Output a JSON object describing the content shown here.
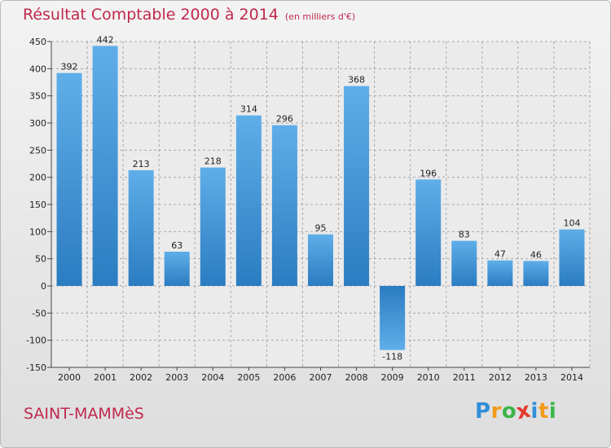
{
  "title": "Résultat Comptable 2000 à 2014",
  "subtitle": "(en milliers d'€)",
  "town": "SAINT-MAMMèS",
  "logo": {
    "letters": [
      "P",
      "r",
      "o",
      "x",
      "i",
      "t",
      "i"
    ],
    "colors": [
      "#2f8fd8",
      "#f29a1b",
      "#3bb54a",
      "#e23a2e",
      "#2f8fd8",
      "#f29a1b",
      "#3bb54a"
    ]
  },
  "colors": {
    "bar_light": "#5faee9",
    "bar_dark": "#2b7cc1",
    "title": "#c0294d",
    "grid": "#a8a8a8"
  },
  "chart_data": {
    "type": "bar",
    "categories": [
      "2000",
      "2001",
      "2002",
      "2003",
      "2004",
      "2005",
      "2006",
      "2007",
      "2008",
      "2009",
      "2010",
      "2011",
      "2012",
      "2013",
      "2014"
    ],
    "values": [
      392,
      442,
      213,
      63,
      218,
      314,
      296,
      95,
      368,
      -118,
      196,
      83,
      47,
      46,
      104
    ],
    "value_labels": [
      "392",
      "442",
      "213",
      "63",
      "218",
      "314",
      "296",
      "95",
      "368",
      "-118",
      "196",
      "83",
      "47",
      "46",
      "104"
    ],
    "title": "Résultat Comptable 2000 à 2014",
    "xlabel": "",
    "ylabel": "",
    "ylim": [
      -150,
      450
    ],
    "yticks": [
      -150,
      -100,
      -50,
      0,
      50,
      100,
      150,
      200,
      250,
      300,
      350,
      400,
      450
    ],
    "grid": true
  }
}
